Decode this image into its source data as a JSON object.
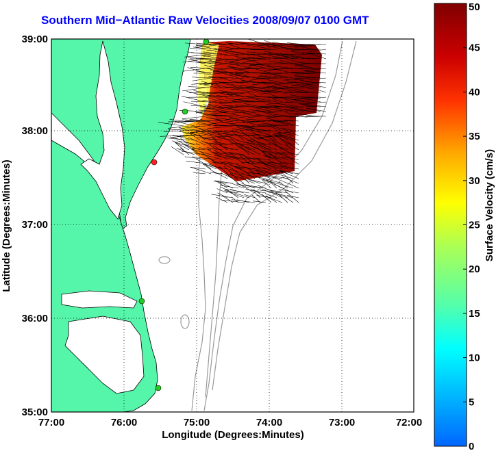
{
  "title": "Southern Mid−Atlantic Raw Velocities 2008/09/07 0100 GMT",
  "map": {
    "xlabel": "Longitude (Degrees:Minutes)",
    "ylabel": "Latitude (Degrees:Minutes)",
    "lon_ticks": [
      "77:00",
      "76:00",
      "75:00",
      "74:00",
      "73:00",
      "72:00"
    ],
    "lat_ticks": [
      "39:00",
      "38:00",
      "37:00",
      "36:00",
      "35:00"
    ],
    "lon_range": [
      -77,
      -72
    ],
    "lat_range": [
      35,
      39
    ],
    "land_color": "#55f5aa",
    "grid": true
  },
  "colorbar": {
    "label": "Surface Velocity (cm/s)",
    "ticks": [
      "50",
      "45",
      "40",
      "35",
      "30",
      "25",
      "20",
      "15",
      "10",
      "5",
      "0"
    ],
    "range": [
      0,
      50
    ],
    "colormap": "jet"
  },
  "stations": [
    {
      "color": "#22cc22"
    },
    {
      "color": "#22cc22"
    },
    {
      "color": "#ff2020"
    },
    {
      "color": "#22cc22"
    },
    {
      "color": "#22cc22"
    }
  ]
}
